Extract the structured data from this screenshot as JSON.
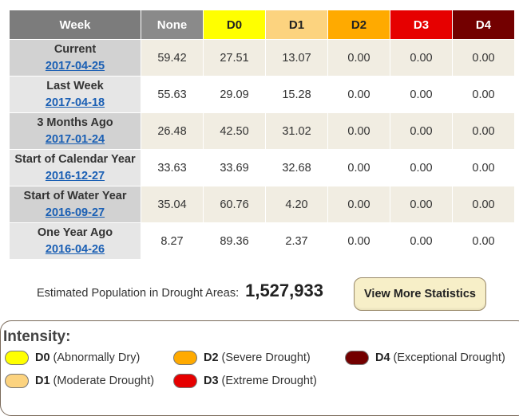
{
  "table": {
    "headers": {
      "week": "Week",
      "none": "None",
      "d0": "D0",
      "d1": "D1",
      "d2": "D2",
      "d3": "D3",
      "d4": "D4"
    },
    "rows": [
      {
        "label": "Current",
        "date": "2017-04-25",
        "none": "59.42",
        "d0": "27.51",
        "d1": "13.07",
        "d2": "0.00",
        "d3": "0.00",
        "d4": "0.00"
      },
      {
        "label": "Last Week",
        "date": "2017-04-18",
        "none": "55.63",
        "d0": "29.09",
        "d1": "15.28",
        "d2": "0.00",
        "d3": "0.00",
        "d4": "0.00"
      },
      {
        "label": "3 Months Ago",
        "date": "2017-01-24",
        "none": "26.48",
        "d0": "42.50",
        "d1": "31.02",
        "d2": "0.00",
        "d3": "0.00",
        "d4": "0.00"
      },
      {
        "label": "Start of Calendar Year",
        "date": "2016-12-27",
        "none": "33.63",
        "d0": "33.69",
        "d1": "32.68",
        "d2": "0.00",
        "d3": "0.00",
        "d4": "0.00"
      },
      {
        "label": "Start of Water Year",
        "date": "2016-09-27",
        "none": "35.04",
        "d0": "60.76",
        "d1": "4.20",
        "d2": "0.00",
        "d3": "0.00",
        "d4": "0.00"
      },
      {
        "label": "One Year Ago",
        "date": "2016-04-26",
        "none": "8.27",
        "d0": "89.36",
        "d1": "2.37",
        "d2": "0.00",
        "d3": "0.00",
        "d4": "0.00"
      }
    ]
  },
  "population": {
    "label": "Estimated Population in Drought Areas:",
    "value": "1,527,933"
  },
  "stats_button": "View More Statistics",
  "legend": {
    "title": "Intensity:",
    "items": [
      {
        "code": "D0",
        "desc": "(Abnormally Dry)",
        "color": "#ffff00"
      },
      {
        "code": "D1",
        "desc": "(Moderate Drought)",
        "color": "#fcd37f"
      },
      {
        "code": "D2",
        "desc": "(Severe Drought)",
        "color": "#ffaa00"
      },
      {
        "code": "D3",
        "desc": "(Extreme Drought)",
        "color": "#e60000"
      },
      {
        "code": "D4",
        "desc": "(Exceptional Drought)",
        "color": "#730000"
      }
    ]
  }
}
